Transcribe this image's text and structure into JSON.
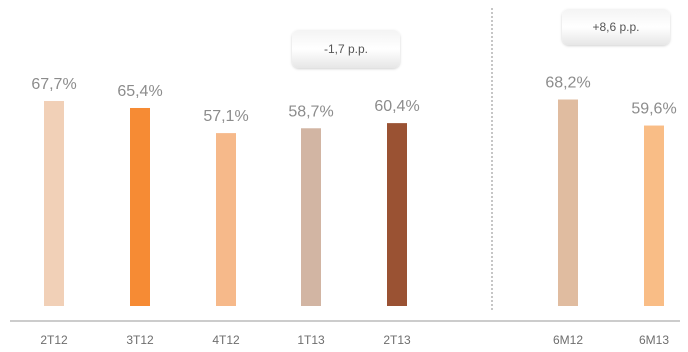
{
  "chart_data": {
    "type": "bar",
    "title": "",
    "xlabel": "",
    "ylabel": "",
    "ylim": [
      0,
      72
    ],
    "grid": false,
    "categories": [
      "2T12",
      "3T12",
      "4T12",
      "1T13",
      "2T13",
      "6M12",
      "6M13"
    ],
    "values": [
      67.7,
      65.4,
      57.1,
      58.7,
      60.4,
      68.2,
      59.6
    ],
    "value_labels": [
      "67,7%",
      "65,4%",
      "57,1%",
      "58,7%",
      "60,4%",
      "68,2%",
      "59,6%"
    ],
    "colors": [
      "#f1d0b7",
      "#f68b34",
      "#f6b98a",
      "#d2b5a3",
      "#9a5233",
      "#e0bca0",
      "#f9bd86"
    ],
    "annotations": [
      {
        "text": "-1,7 p.p.",
        "group": "quarterly"
      },
      {
        "text": "+8,6 p.p.",
        "group": "semiannual"
      }
    ]
  }
}
